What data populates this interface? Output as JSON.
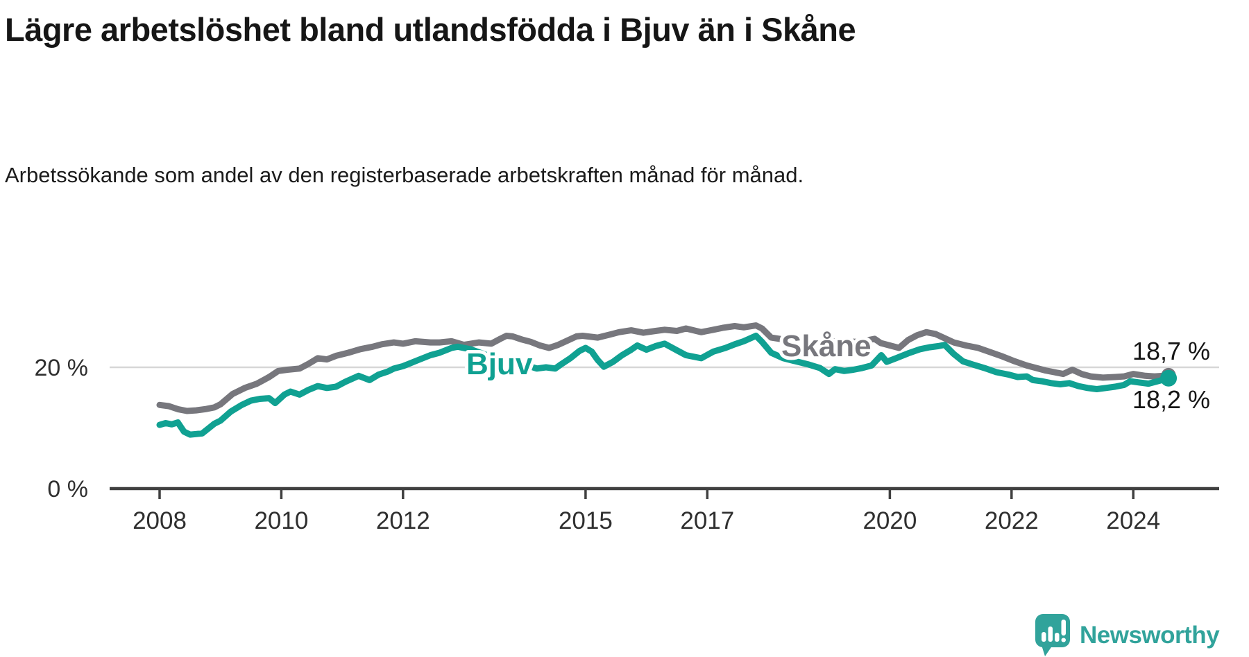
{
  "header": {
    "title": "Lägre arbetslöshet bland utlandsfödda i Bjuv än i Skåne",
    "subtitle": "Arbetssökande som andel av den registerbaserade arbetskraften månad för månad."
  },
  "branding": {
    "logo_text": "Newsworthy",
    "logo_color": "#31a39b",
    "logo_icon": "bar-chart-speech-bubble"
  },
  "colors": {
    "bjuv": "#10a192",
    "skane": "#77777d",
    "grid": "#d7d7d7",
    "axis": "#404040",
    "text": "#161616",
    "tick_text": "#2f2f2f",
    "background": "#ffffff"
  },
  "chart_data": {
    "type": "line",
    "unit": "%",
    "x_range": [
      2007.2,
      2025.4
    ],
    "ylim": [
      0,
      30
    ],
    "grid": "single horizontal gridline at 20 %",
    "legend_position": "inline labels on lines",
    "y_ticks": [
      {
        "value": 20,
        "label": "20 %"
      },
      {
        "value": 0,
        "label": "0 %"
      }
    ],
    "x_ticks": [
      {
        "year": 2008,
        "label": "2008"
      },
      {
        "year": 2010,
        "label": "2010"
      },
      {
        "year": 2012,
        "label": "2012"
      },
      {
        "year": 2015,
        "label": "2015"
      },
      {
        "year": 2017,
        "label": "2017"
      },
      {
        "year": 2020,
        "label": "2020"
      },
      {
        "year": 2022,
        "label": "2022"
      },
      {
        "year": 2024,
        "label": "2024"
      }
    ],
    "series": [
      {
        "name": "Skåne",
        "color": "#77777d",
        "end_value": 18.7,
        "end_label": "18,7 %",
        "points": [
          [
            2008.0,
            13.8
          ],
          [
            2008.15,
            13.6
          ],
          [
            2008.3,
            13.1
          ],
          [
            2008.45,
            12.8
          ],
          [
            2008.6,
            12.9
          ],
          [
            2008.75,
            13.1
          ],
          [
            2008.9,
            13.4
          ],
          [
            2009.0,
            13.9
          ],
          [
            2009.2,
            15.6
          ],
          [
            2009.4,
            16.6
          ],
          [
            2009.6,
            17.3
          ],
          [
            2009.8,
            18.4
          ],
          [
            2009.95,
            19.4
          ],
          [
            2010.1,
            19.6
          ],
          [
            2010.3,
            19.8
          ],
          [
            2010.45,
            20.6
          ],
          [
            2010.6,
            21.5
          ],
          [
            2010.75,
            21.3
          ],
          [
            2010.9,
            21.9
          ],
          [
            2011.1,
            22.4
          ],
          [
            2011.3,
            23.0
          ],
          [
            2011.5,
            23.4
          ],
          [
            2011.65,
            23.8
          ],
          [
            2011.85,
            24.1
          ],
          [
            2012.0,
            23.9
          ],
          [
            2012.2,
            24.3
          ],
          [
            2012.45,
            24.1
          ],
          [
            2012.6,
            24.1
          ],
          [
            2012.8,
            24.3
          ],
          [
            2013.0,
            23.7
          ],
          [
            2013.25,
            24.1
          ],
          [
            2013.45,
            23.9
          ],
          [
            2013.6,
            24.7
          ],
          [
            2013.7,
            25.2
          ],
          [
            2013.8,
            25.1
          ],
          [
            2013.95,
            24.6
          ],
          [
            2014.1,
            24.2
          ],
          [
            2014.25,
            23.6
          ],
          [
            2014.4,
            23.2
          ],
          [
            2014.55,
            23.7
          ],
          [
            2014.7,
            24.4
          ],
          [
            2014.85,
            25.1
          ],
          [
            2014.95,
            25.2
          ],
          [
            2015.2,
            24.9
          ],
          [
            2015.4,
            25.4
          ],
          [
            2015.55,
            25.8
          ],
          [
            2015.75,
            26.1
          ],
          [
            2015.95,
            25.7
          ],
          [
            2016.15,
            26.0
          ],
          [
            2016.3,
            26.2
          ],
          [
            2016.5,
            26.0
          ],
          [
            2016.65,
            26.4
          ],
          [
            2016.9,
            25.8
          ],
          [
            2017.1,
            26.2
          ],
          [
            2017.25,
            26.5
          ],
          [
            2017.45,
            26.8
          ],
          [
            2017.6,
            26.6
          ],
          [
            2017.8,
            26.9
          ],
          [
            2017.9,
            26.4
          ],
          [
            2018.05,
            24.9
          ],
          [
            2018.25,
            24.6
          ],
          [
            2018.5,
            24.5
          ],
          [
            2018.75,
            24.3
          ],
          [
            2019.0,
            24.2
          ],
          [
            2019.2,
            24.3
          ],
          [
            2019.45,
            24.2
          ],
          [
            2019.6,
            24.4
          ],
          [
            2019.75,
            24.7
          ],
          [
            2019.85,
            24.0
          ],
          [
            2020.0,
            23.6
          ],
          [
            2020.15,
            23.2
          ],
          [
            2020.3,
            24.5
          ],
          [
            2020.45,
            25.3
          ],
          [
            2020.6,
            25.8
          ],
          [
            2020.75,
            25.5
          ],
          [
            2020.9,
            24.8
          ],
          [
            2021.05,
            24.1
          ],
          [
            2021.25,
            23.6
          ],
          [
            2021.45,
            23.2
          ],
          [
            2021.65,
            22.5
          ],
          [
            2021.85,
            21.8
          ],
          [
            2022.05,
            21.0
          ],
          [
            2022.25,
            20.3
          ],
          [
            2022.4,
            19.9
          ],
          [
            2022.55,
            19.5
          ],
          [
            2022.7,
            19.2
          ],
          [
            2022.85,
            18.9
          ],
          [
            2023.0,
            19.6
          ],
          [
            2023.15,
            18.9
          ],
          [
            2023.3,
            18.5
          ],
          [
            2023.5,
            18.3
          ],
          [
            2023.7,
            18.4
          ],
          [
            2023.85,
            18.5
          ],
          [
            2024.0,
            18.9
          ],
          [
            2024.2,
            18.6
          ],
          [
            2024.35,
            18.5
          ],
          [
            2024.5,
            18.6
          ],
          [
            2024.58,
            18.7
          ]
        ]
      },
      {
        "name": "Bjuv",
        "color": "#10a192",
        "end_value": 18.2,
        "end_label": "18,2 %",
        "points": [
          [
            2008.0,
            10.5
          ],
          [
            2008.1,
            10.8
          ],
          [
            2008.2,
            10.6
          ],
          [
            2008.3,
            10.9
          ],
          [
            2008.4,
            9.4
          ],
          [
            2008.5,
            8.9
          ],
          [
            2008.6,
            9.0
          ],
          [
            2008.7,
            9.1
          ],
          [
            2008.8,
            9.9
          ],
          [
            2008.9,
            10.7
          ],
          [
            2009.0,
            11.2
          ],
          [
            2009.17,
            12.7
          ],
          [
            2009.35,
            13.8
          ],
          [
            2009.5,
            14.5
          ],
          [
            2009.65,
            14.8
          ],
          [
            2009.8,
            14.9
          ],
          [
            2009.9,
            14.1
          ],
          [
            2010.05,
            15.5
          ],
          [
            2010.15,
            16.0
          ],
          [
            2010.3,
            15.5
          ],
          [
            2010.45,
            16.3
          ],
          [
            2010.6,
            16.9
          ],
          [
            2010.75,
            16.6
          ],
          [
            2010.9,
            16.8
          ],
          [
            2011.05,
            17.6
          ],
          [
            2011.27,
            18.6
          ],
          [
            2011.45,
            17.9
          ],
          [
            2011.6,
            18.8
          ],
          [
            2011.75,
            19.3
          ],
          [
            2011.85,
            19.8
          ],
          [
            2012.0,
            20.2
          ],
          [
            2012.1,
            20.6
          ],
          [
            2012.25,
            21.2
          ],
          [
            2012.45,
            22.0
          ],
          [
            2012.6,
            22.4
          ],
          [
            2012.8,
            23.2
          ],
          [
            2012.9,
            23.4
          ],
          [
            2013.1,
            23.0
          ],
          [
            2013.3,
            22.3
          ],
          [
            2013.5,
            21.5
          ],
          [
            2013.7,
            20.9
          ],
          [
            2013.9,
            20.4
          ],
          [
            2014.1,
            20.1
          ],
          [
            2014.2,
            19.8
          ],
          [
            2014.35,
            20.0
          ],
          [
            2014.5,
            19.8
          ],
          [
            2014.6,
            20.5
          ],
          [
            2014.75,
            21.5
          ],
          [
            2014.9,
            22.7
          ],
          [
            2015.0,
            23.2
          ],
          [
            2015.1,
            22.6
          ],
          [
            2015.2,
            21.2
          ],
          [
            2015.3,
            20.1
          ],
          [
            2015.45,
            20.9
          ],
          [
            2015.6,
            22.0
          ],
          [
            2015.75,
            22.9
          ],
          [
            2015.85,
            23.6
          ],
          [
            2016.0,
            22.9
          ],
          [
            2016.15,
            23.5
          ],
          [
            2016.3,
            23.9
          ],
          [
            2016.5,
            22.8
          ],
          [
            2016.65,
            22.0
          ],
          [
            2016.9,
            21.5
          ],
          [
            2017.1,
            22.6
          ],
          [
            2017.3,
            23.2
          ],
          [
            2017.45,
            23.8
          ],
          [
            2017.6,
            24.3
          ],
          [
            2017.8,
            25.2
          ],
          [
            2017.9,
            24.2
          ],
          [
            2018.05,
            22.4
          ],
          [
            2018.25,
            21.5
          ],
          [
            2018.45,
            21.0
          ],
          [
            2018.65,
            20.5
          ],
          [
            2018.85,
            19.9
          ],
          [
            2019.0,
            18.9
          ],
          [
            2019.1,
            19.7
          ],
          [
            2019.25,
            19.4
          ],
          [
            2019.4,
            19.6
          ],
          [
            2019.55,
            19.9
          ],
          [
            2019.7,
            20.3
          ],
          [
            2019.86,
            22.0
          ],
          [
            2019.95,
            20.9
          ],
          [
            2020.1,
            21.5
          ],
          [
            2020.3,
            22.3
          ],
          [
            2020.5,
            23.0
          ],
          [
            2020.65,
            23.3
          ],
          [
            2020.8,
            23.5
          ],
          [
            2020.9,
            23.7
          ],
          [
            2021.05,
            22.2
          ],
          [
            2021.2,
            21.0
          ],
          [
            2021.35,
            20.5
          ],
          [
            2021.55,
            19.9
          ],
          [
            2021.75,
            19.2
          ],
          [
            2021.95,
            18.8
          ],
          [
            2022.1,
            18.4
          ],
          [
            2022.25,
            18.5
          ],
          [
            2022.35,
            17.9
          ],
          [
            2022.5,
            17.7
          ],
          [
            2022.65,
            17.4
          ],
          [
            2022.8,
            17.2
          ],
          [
            2022.95,
            17.4
          ],
          [
            2023.1,
            16.9
          ],
          [
            2023.25,
            16.6
          ],
          [
            2023.4,
            16.4
          ],
          [
            2023.55,
            16.6
          ],
          [
            2023.7,
            16.8
          ],
          [
            2023.85,
            17.1
          ],
          [
            2023.95,
            17.7
          ],
          [
            2024.1,
            17.5
          ],
          [
            2024.25,
            17.3
          ],
          [
            2024.4,
            17.7
          ],
          [
            2024.58,
            18.2
          ]
        ]
      }
    ]
  }
}
